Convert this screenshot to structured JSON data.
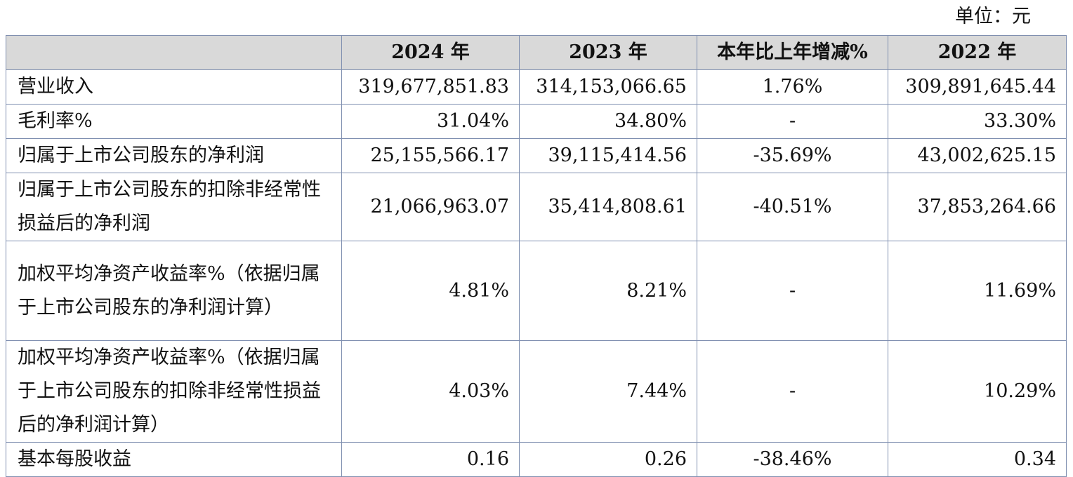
{
  "unit_label": "单位：元",
  "table": {
    "headers": [
      "",
      "2024 年",
      "2023 年",
      "本年比上年增减%",
      "2022 年"
    ],
    "rows": [
      {
        "label": "营业收入",
        "v2024": "319,677,851.83",
        "v2023": "314,153,066.65",
        "change": "1.76%",
        "v2022": "309,891,645.44"
      },
      {
        "label": "毛利率%",
        "v2024": "31.04%",
        "v2023": "34.80%",
        "change": "-",
        "v2022": "33.30%"
      },
      {
        "label": "归属于上市公司股东的净利润",
        "v2024": "25,155,566.17",
        "v2023": "39,115,414.56",
        "change": "-35.69%",
        "v2022": "43,002,625.15"
      },
      {
        "label": "归属于上市公司股东的扣除非经常性损益后的净利润",
        "v2024": "21,066,963.07",
        "v2023": "35,414,808.61",
        "change": "-40.51%",
        "v2022": "37,853,264.66"
      },
      {
        "label": "加权平均净资产收益率%（依据归属于上市公司股东的净利润计算）",
        "v2024": "4.81%",
        "v2023": "8.21%",
        "change": "-",
        "v2022": "11.69%"
      },
      {
        "label": "加权平均净资产收益率%（依据归属于上市公司股东的扣除非经常性损益后的净利润计算）",
        "v2024": "4.03%",
        "v2023": "7.44%",
        "change": "-",
        "v2022": "10.29%"
      },
      {
        "label": "基本每股收益",
        "v2024": "0.16",
        "v2023": "0.26",
        "change": "-38.46%",
        "v2022": "0.34"
      }
    ]
  }
}
